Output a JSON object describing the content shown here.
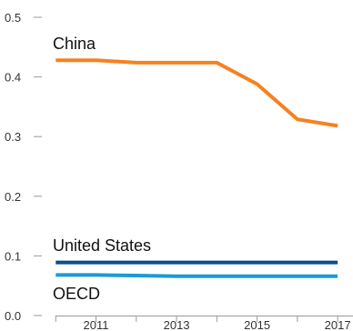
{
  "chart_data": {
    "type": "line",
    "title": "",
    "xlabel": "",
    "ylabel": "",
    "x": [
      2010,
      2011,
      2012,
      2013,
      2014,
      2015,
      2016,
      2017
    ],
    "x_tick_labels": [
      "2011",
      "2013",
      "2015",
      "2017"
    ],
    "x_ticks": [
      2011,
      2013,
      2015,
      2017
    ],
    "y_ticks": [
      0.0,
      0.1,
      0.2,
      0.3,
      0.4,
      0.5
    ],
    "y_tick_labels": [
      "0.0",
      "0.1",
      "0.2",
      "0.3",
      "0.4",
      "0.5"
    ],
    "ylim": [
      0,
      0.5
    ],
    "xlim": [
      2009.7,
      2017.2
    ],
    "grid": false,
    "legend": "none",
    "series": [
      {
        "name": "China",
        "color": "#F58220",
        "values": [
          0.428,
          0.428,
          0.424,
          0.424,
          0.424,
          0.388,
          0.329,
          0.318
        ]
      },
      {
        "name": "United States",
        "color": "#0A4C8C",
        "values": [
          0.089,
          0.089,
          0.089,
          0.089,
          0.089,
          0.089,
          0.089,
          0.089
        ]
      },
      {
        "name": "OECD",
        "color": "#1A9BD7",
        "values": [
          0.068,
          0.068,
          0.067,
          0.066,
          0.066,
          0.066,
          0.066,
          0.066
        ]
      }
    ]
  }
}
